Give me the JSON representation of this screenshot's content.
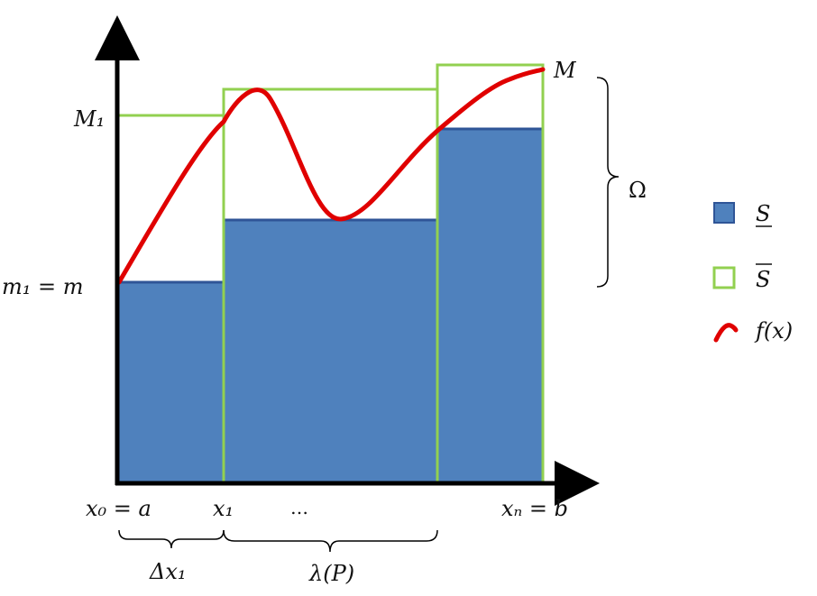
{
  "labels": {
    "y_top": "M",
    "y_M1": "M₁",
    "y_m1": "m₁ = m",
    "x0": "x₀ = a",
    "x1": "x₁",
    "dots": "…",
    "xn": "xₙ = b",
    "delta_x1": "Δx₁",
    "lambda": "λ(P)",
    "omega": "Ω"
  },
  "legend": {
    "lower_sum": "S",
    "upper_sum": "S",
    "function": "f(x)"
  },
  "colors": {
    "lower_fill": "#4f81bd",
    "lower_edge": "#2f5597",
    "upper_stroke": "#92d050",
    "curve": "#e00000",
    "axis": "#000000"
  }
}
